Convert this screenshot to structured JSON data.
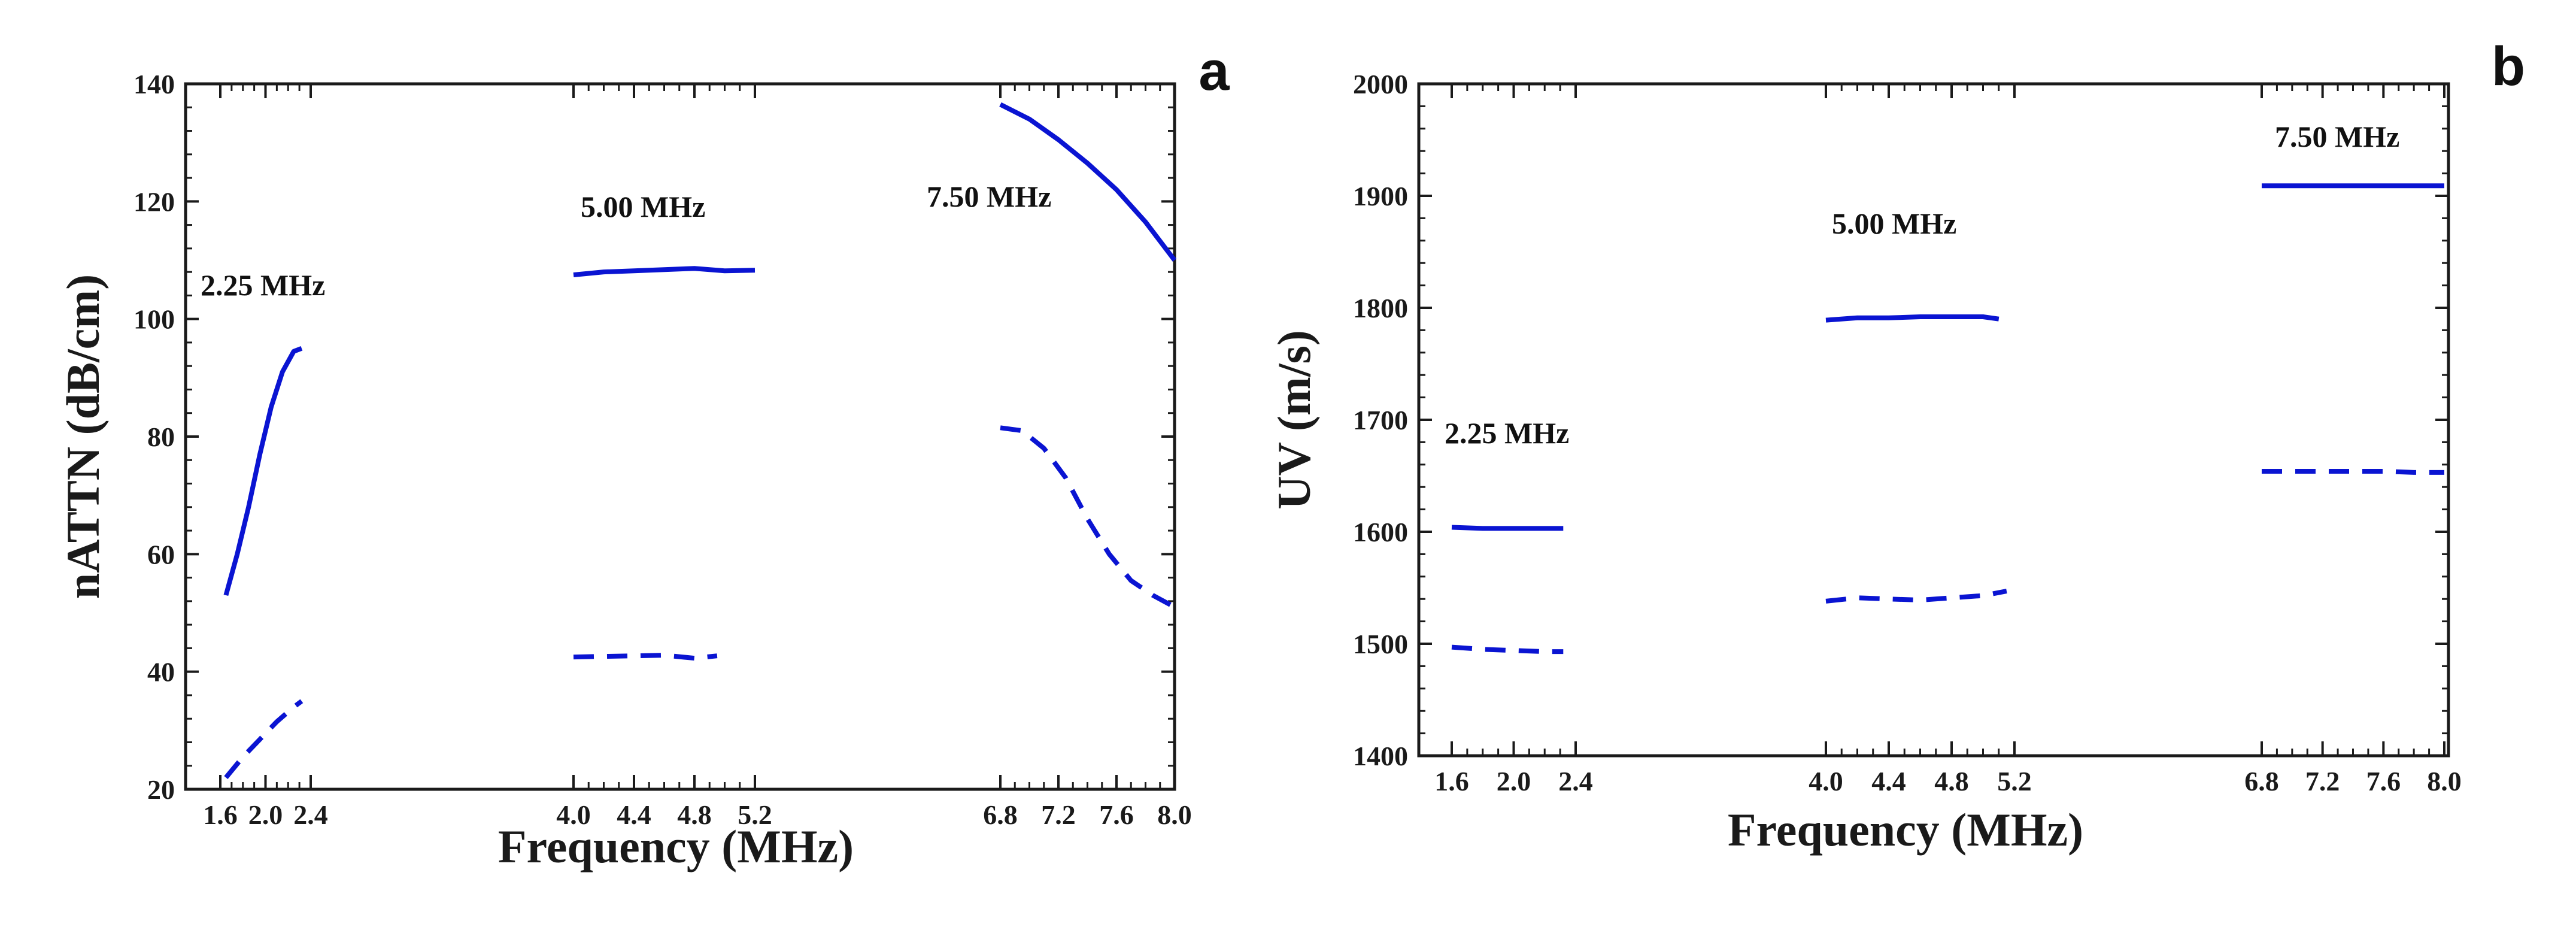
{
  "colors": {
    "series": "#0a14d2",
    "axis": "#1a1a1a"
  },
  "chart_data": [
    {
      "panel": "a",
      "type": "line",
      "xlabel": "Frequency (MHz)",
      "ylabel": "nATTN (dB/cm)",
      "ylim": [
        20,
        140
      ],
      "yticks": [
        20,
        40,
        60,
        80,
        100,
        120,
        140
      ],
      "xticks": [
        "1.6",
        "2.0",
        "2.4",
        "4.0",
        "4.4",
        "4.8",
        "5.2",
        "6.8",
        "7.2",
        "7.6",
        "8.0"
      ],
      "annotations": [
        "2.25 MHz",
        "5.00 MHz",
        "7.50 MHz"
      ],
      "series": [
        {
          "name": "2.25 MHz solid",
          "style": "solid",
          "x": [
            1.65,
            1.75,
            1.85,
            1.95,
            2.05,
            2.15,
            2.25,
            2.32
          ],
          "y": [
            53,
            60,
            68,
            77,
            85,
            91,
            94.5,
            95
          ]
        },
        {
          "name": "2.25 MHz dashed",
          "style": "dashed",
          "x": [
            1.65,
            1.8,
            1.95,
            2.1,
            2.25,
            2.32
          ],
          "y": [
            22,
            25.5,
            28.5,
            31.5,
            34,
            35
          ]
        },
        {
          "name": "5.00 MHz solid",
          "style": "solid",
          "x": [
            4.0,
            4.2,
            4.4,
            4.6,
            4.8,
            5.0,
            5.2
          ],
          "y": [
            107.5,
            108,
            108.2,
            108.4,
            108.6,
            108.2,
            108.3
          ]
        },
        {
          "name": "5.00 MHz dashed",
          "style": "dashed",
          "x": [
            4.0,
            4.2,
            4.4,
            4.6,
            4.8,
            4.95
          ],
          "y": [
            42.5,
            42.6,
            42.7,
            42.8,
            42.3,
            42.7
          ]
        },
        {
          "name": "7.50 MHz solid",
          "style": "solid",
          "x": [
            6.8,
            7.0,
            7.2,
            7.4,
            7.6,
            7.8,
            8.0
          ],
          "y": [
            136.5,
            134,
            130.5,
            126.5,
            122,
            116.5,
            110
          ]
        },
        {
          "name": "7.50 MHz dashed",
          "style": "dashed",
          "x": [
            6.8,
            6.95,
            7.1,
            7.25,
            7.4,
            7.55,
            7.7,
            7.85,
            8.0
          ],
          "y": [
            81.5,
            81,
            78,
            73,
            66,
            60,
            55.5,
            53,
            51
          ]
        }
      ]
    },
    {
      "panel": "b",
      "type": "line",
      "xlabel": "Frequency (MHz)",
      "ylabel": "UV (m/s)",
      "ylim": [
        1400,
        2000
      ],
      "yticks": [
        1400,
        1500,
        1600,
        1700,
        1800,
        1900,
        2000
      ],
      "xticks": [
        "1.6",
        "2.0",
        "2.4",
        "4.0",
        "4.4",
        "4.8",
        "5.2",
        "6.8",
        "7.2",
        "7.6",
        "8.0"
      ],
      "annotations": [
        "2.25 MHz",
        "5.00 MHz",
        "7.50 MHz"
      ],
      "series": [
        {
          "name": "2.25 MHz solid",
          "style": "solid",
          "x": [
            1.6,
            1.8,
            2.0,
            2.2,
            2.32
          ],
          "y": [
            1604,
            1603,
            1603,
            1603,
            1603
          ]
        },
        {
          "name": "2.25 MHz dashed",
          "style": "dashed",
          "x": [
            1.6,
            1.8,
            2.0,
            2.2,
            2.32
          ],
          "y": [
            1497,
            1495,
            1494,
            1493,
            1493
          ]
        },
        {
          "name": "5.00 MHz solid",
          "style": "solid",
          "x": [
            4.0,
            4.2,
            4.4,
            4.6,
            4.8,
            5.0,
            5.1
          ],
          "y": [
            1789,
            1791,
            1791,
            1792,
            1792,
            1792,
            1790
          ]
        },
        {
          "name": "5.00 MHz dashed",
          "style": "dashed",
          "x": [
            4.0,
            4.2,
            4.4,
            4.6,
            4.8,
            5.0,
            5.15
          ],
          "y": [
            1538,
            1541,
            1540,
            1539,
            1541,
            1543,
            1547
          ]
        },
        {
          "name": "7.50 MHz solid",
          "style": "solid",
          "x": [
            6.8,
            7.0,
            7.2,
            7.4,
            7.6,
            7.8,
            8.0
          ],
          "y": [
            1909,
            1909,
            1909,
            1909,
            1909,
            1909,
            1909
          ]
        },
        {
          "name": "7.50 MHz dashed",
          "style": "dashed",
          "x": [
            6.8,
            7.0,
            7.2,
            7.4,
            7.6,
            7.8,
            8.0
          ],
          "y": [
            1654,
            1654,
            1654,
            1654,
            1654,
            1653,
            1653
          ]
        }
      ]
    }
  ]
}
